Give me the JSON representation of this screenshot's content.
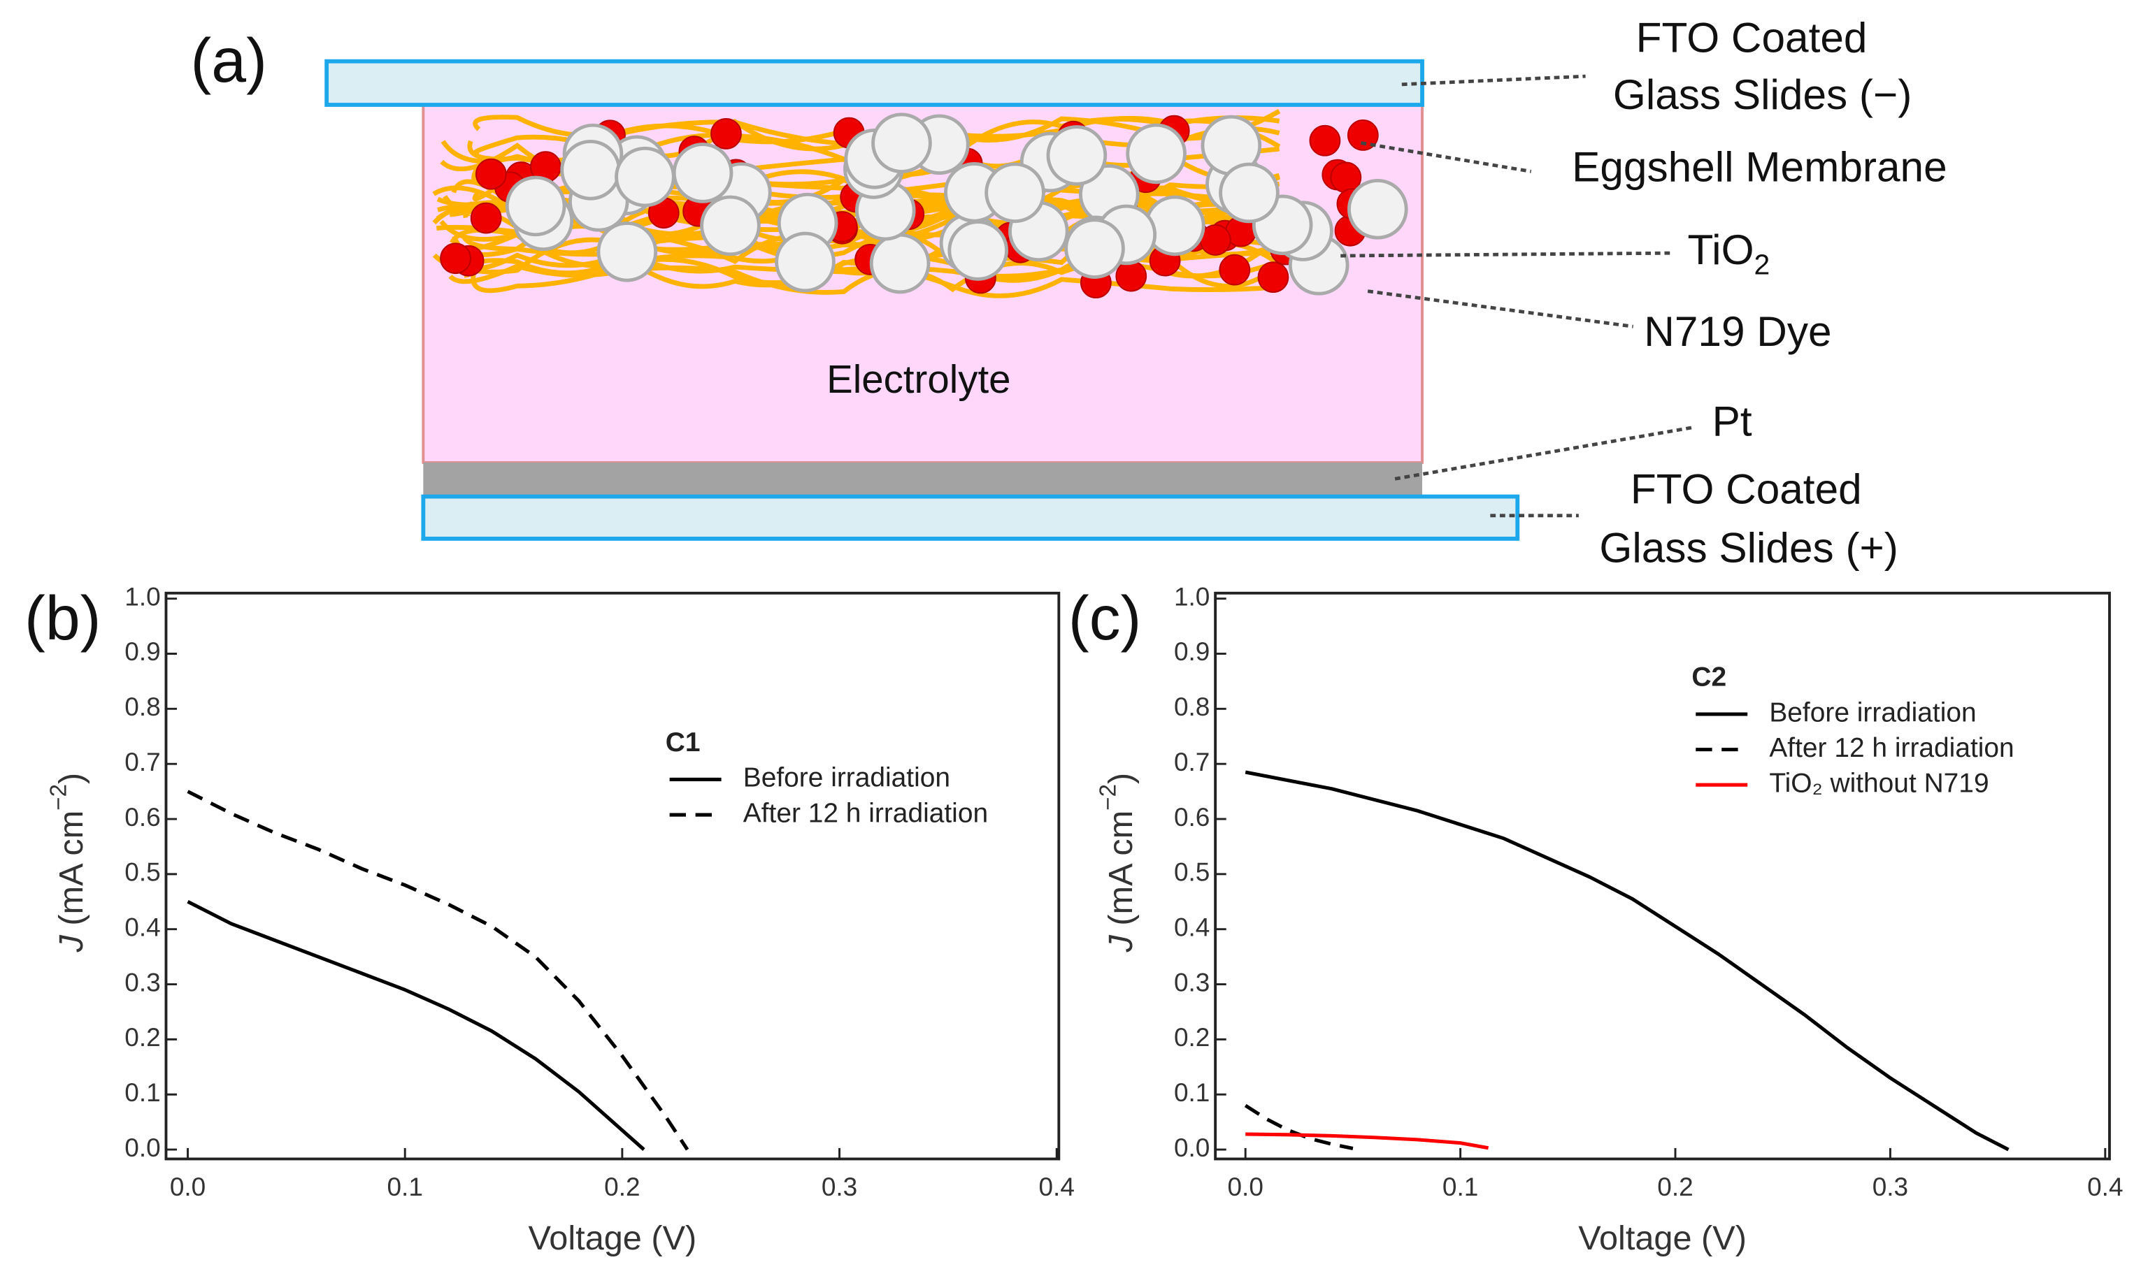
{
  "diagram": {
    "panel": "(a)",
    "labels": {
      "fto_top_1": "FTO Coated",
      "fto_top_2": "Glass Slides (−)",
      "membrane": "Eggshell Membrane",
      "tio2": "TiO",
      "tio2_sub": "2",
      "dye": "N719 Dye",
      "electrolyte": "Electrolyte",
      "pt": "Pt",
      "fto_bottom_1": "FTO Coated",
      "fto_bottom_2": "Glass Slides (+)"
    }
  },
  "chart_data": [
    {
      "type": "line",
      "panel": "(b)",
      "xlabel": "Voltage (V)",
      "ylabel": [
        "J",
        " (mA cm",
        "−2",
        ")"
      ],
      "legend_title": "C1",
      "xlim": [
        -0.01,
        0.401
      ],
      "ylim": [
        -0.017,
        1.01
      ],
      "xticks": [
        {
          "value": 0,
          "label": "0.0"
        },
        0.1,
        0.2,
        0.3,
        0.4
      ],
      "yticks": [
        {
          "value": 0,
          "label": "0.0"
        },
        0.1,
        0.2,
        0.3,
        0.4,
        0.5,
        0.6,
        0.7,
        0.8,
        0.9,
        {
          "value": 1,
          "label": "1.0"
        }
      ],
      "series": [
        {
          "name": "Before irradiation",
          "color": "#000000",
          "dashed": false,
          "x": [
            0,
            0.02,
            0.04,
            0.06,
            0.08,
            0.1,
            0.12,
            0.14,
            0.16,
            0.18,
            0.2,
            0.21
          ],
          "values": [
            0.45,
            0.41,
            0.38,
            0.35,
            0.32,
            0.29,
            0.255,
            0.215,
            0.165,
            0.105,
            0.035,
            0
          ]
        },
        {
          "name": "After 12 h irradiation",
          "color": "#000000",
          "dashed": true,
          "x": [
            0,
            0.02,
            0.04,
            0.06,
            0.08,
            0.1,
            0.12,
            0.14,
            0.16,
            0.18,
            0.2,
            0.22,
            0.23
          ],
          "values": [
            0.65,
            0.61,
            0.575,
            0.545,
            0.51,
            0.48,
            0.445,
            0.405,
            0.35,
            0.27,
            0.17,
            0.06,
            0
          ]
        }
      ]
    },
    {
      "type": "line",
      "panel": "(c)",
      "xlabel": "Voltage (V)",
      "ylabel": [
        "J",
        " (mA cm",
        "−2",
        ")"
      ],
      "legend_title": "C2",
      "xlim": [
        -0.014,
        0.402
      ],
      "ylim": [
        -0.017,
        1.01
      ],
      "xticks": [
        {
          "value": 0,
          "label": "0.0"
        },
        0.1,
        0.2,
        0.3,
        0.4
      ],
      "yticks": [
        {
          "value": 0,
          "label": "0.0"
        },
        0.1,
        0.2,
        0.3,
        0.4,
        0.5,
        0.6,
        0.7,
        0.8,
        0.9,
        {
          "value": 1,
          "label": "1.0"
        }
      ],
      "series": [
        {
          "name": "Before irradiation",
          "color": "#000000",
          "dashed": false,
          "x": [
            0,
            0.02,
            0.04,
            0.06,
            0.08,
            0.1,
            0.12,
            0.14,
            0.16,
            0.18,
            0.2,
            0.22,
            0.24,
            0.26,
            0.28,
            0.3,
            0.32,
            0.34,
            0.355
          ],
          "values": [
            0.685,
            0.67,
            0.655,
            0.635,
            0.615,
            0.59,
            0.565,
            0.53,
            0.495,
            0.455,
            0.405,
            0.355,
            0.3,
            0.245,
            0.185,
            0.13,
            0.08,
            0.03,
            0
          ]
        },
        {
          "name": "After 12 h irradiation",
          "color": "#000000",
          "dashed": true,
          "x": [
            0,
            0.01,
            0.02,
            0.03,
            0.04,
            0.05
          ],
          "values": [
            0.08,
            0.055,
            0.035,
            0.02,
            0.01,
            0.002
          ]
        },
        {
          "name": "TiO₂ without N719",
          "color": "#ff0000",
          "dashed": false,
          "x": [
            0,
            0.02,
            0.04,
            0.06,
            0.08,
            0.1,
            0.113
          ],
          "values": [
            0.028,
            0.027,
            0.025,
            0.022,
            0.018,
            0.012,
            0.003
          ]
        }
      ]
    }
  ]
}
